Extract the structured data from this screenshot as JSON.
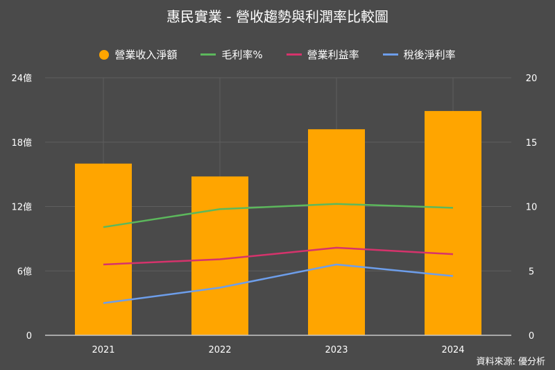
{
  "title": "惠民實業 - 營收趨勢與利潤率比較圖",
  "source": "資料來源: 優分析",
  "legend": [
    {
      "label": "營業收入淨額",
      "color": "#ffa500",
      "kind": "dot"
    },
    {
      "label": "毛利率%",
      "color": "#5cb85c",
      "kind": "line"
    },
    {
      "label": "營業利益率",
      "color": "#d6336c",
      "kind": "line"
    },
    {
      "label": "稅後淨利率",
      "color": "#6d9eeb",
      "kind": "line"
    }
  ],
  "chart_data": {
    "type": "bar",
    "categories": [
      "2021",
      "2022",
      "2023",
      "2024"
    ],
    "left_axis": {
      "ticks": [
        "0",
        "6億",
        "12億",
        "18億",
        "24億"
      ],
      "ylim": [
        0,
        24
      ]
    },
    "right_axis": {
      "ticks": [
        "0",
        "5",
        "10",
        "15",
        "20"
      ],
      "ylim": [
        0,
        20
      ]
    },
    "grid": true,
    "legend_position": "top",
    "series": [
      {
        "name": "營業收入淨額",
        "type": "bar",
        "axis": "left",
        "color": "#ffa500",
        "values": [
          16.0,
          14.8,
          19.2,
          20.9
        ]
      },
      {
        "name": "毛利率%",
        "type": "line",
        "axis": "right",
        "color": "#5cb85c",
        "values": [
          8.4,
          9.8,
          10.2,
          9.9
        ]
      },
      {
        "name": "營業利益率",
        "type": "line",
        "axis": "right",
        "color": "#d6336c",
        "values": [
          5.5,
          5.9,
          6.8,
          6.3
        ]
      },
      {
        "name": "稅後淨利率",
        "type": "line",
        "axis": "right",
        "color": "#6d9eeb",
        "values": [
          2.5,
          3.7,
          5.5,
          4.6
        ]
      }
    ]
  }
}
